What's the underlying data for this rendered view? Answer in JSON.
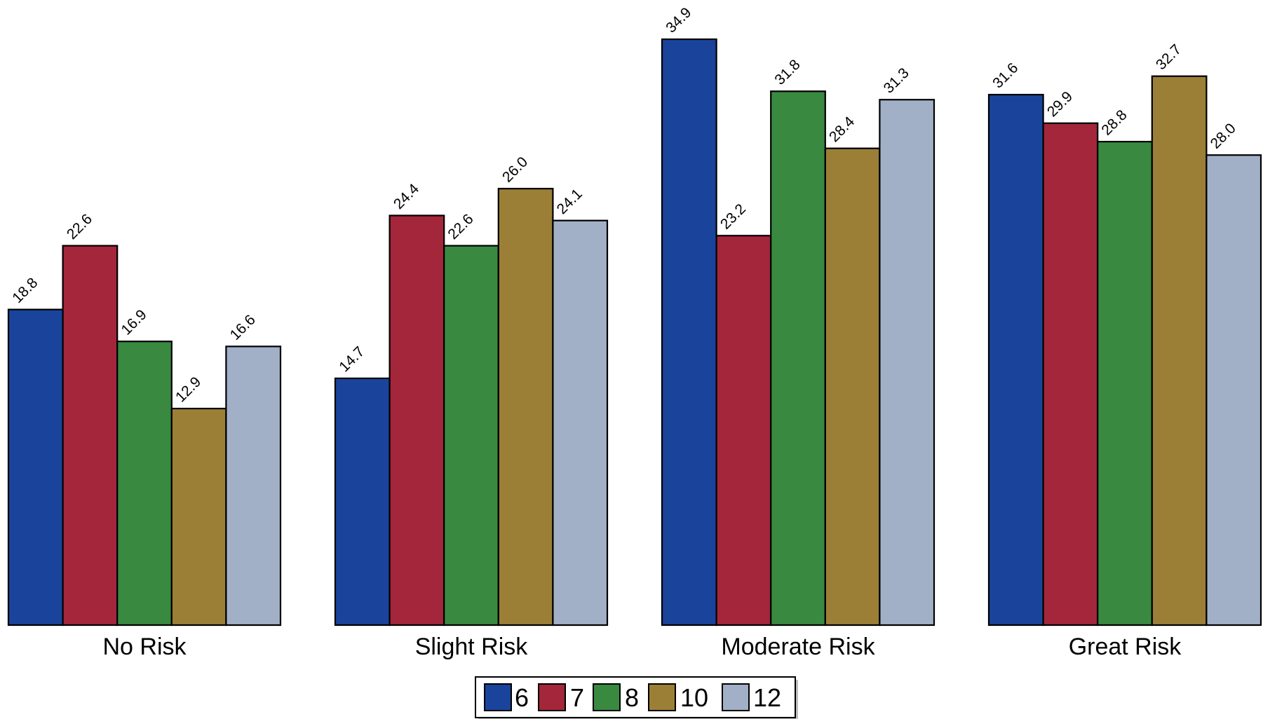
{
  "chart_data": {
    "type": "bar",
    "categories": [
      "No Risk",
      "Slight Risk",
      "Moderate Risk",
      "Great Risk"
    ],
    "series": [
      {
        "name": "6",
        "color": "#1a449b",
        "values": [
          18.8,
          14.7,
          34.9,
          31.6
        ]
      },
      {
        "name": "7",
        "color": "#a4263a",
        "values": [
          22.6,
          24.4,
          23.2,
          29.9
        ]
      },
      {
        "name": "8",
        "color": "#398941",
        "values": [
          16.9,
          22.6,
          31.8,
          28.8
        ]
      },
      {
        "name": "10",
        "color": "#9c7f36",
        "values": [
          12.9,
          26.0,
          28.4,
          32.7
        ]
      },
      {
        "name": "12",
        "color": "#a2b0c7",
        "values": [
          16.6,
          24.1,
          31.3,
          28.0
        ]
      }
    ],
    "ylim": [
      0,
      34.9
    ],
    "value_label_precision": 1,
    "legend_position": "bottom-center",
    "grid": false
  }
}
